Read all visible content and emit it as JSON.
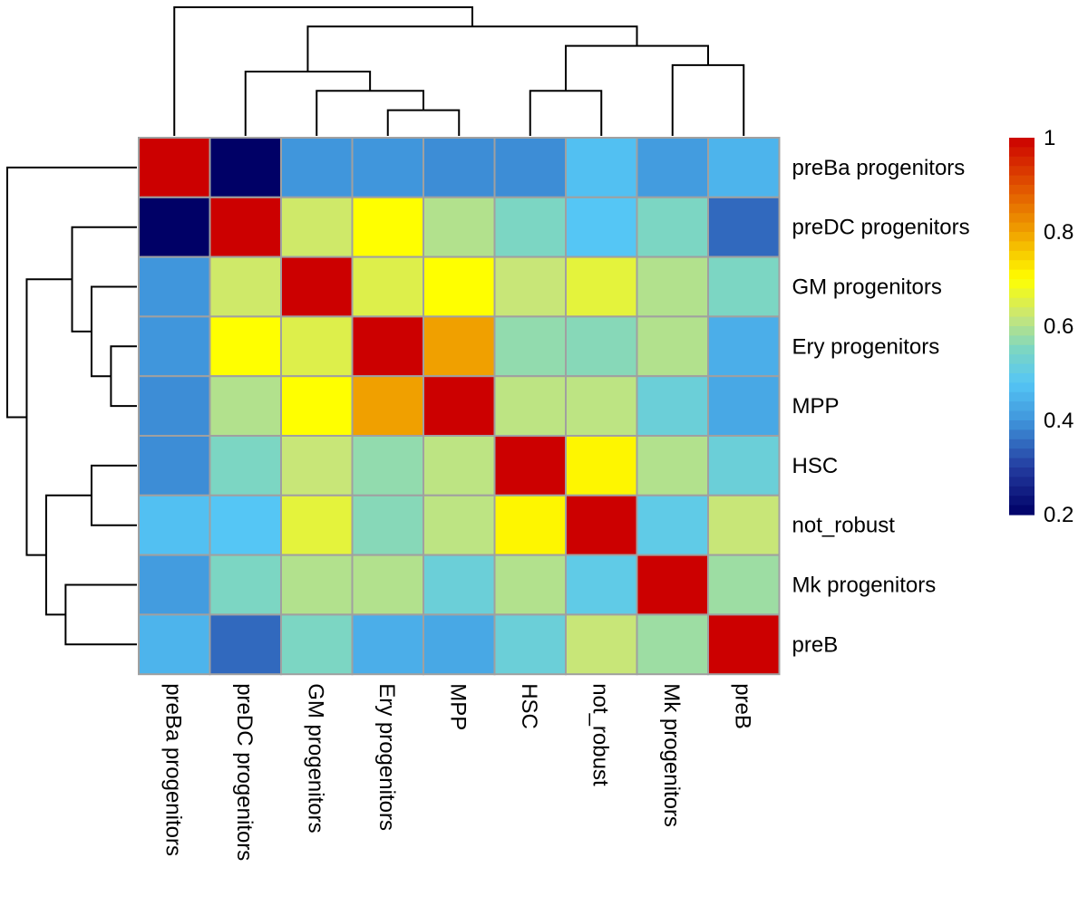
{
  "chart_data": {
    "type": "heatmap",
    "title": "",
    "rows": [
      "preBa progenitors",
      "preDC progenitors",
      "GM progenitors",
      "Ery progenitors",
      "MPP",
      "HSC",
      "not_robust",
      "Mk progenitors",
      "preB"
    ],
    "cols": [
      "preBa progenitors",
      "preDC progenitors",
      "GM progenitors",
      "Ery progenitors",
      "MPP",
      "HSC",
      "not_robust",
      "Mk progenitors",
      "preB"
    ],
    "values": [
      [
        1.0,
        0.2,
        0.4,
        0.4,
        0.39,
        0.39,
        0.47,
        0.41,
        0.45
      ],
      [
        0.2,
        1.0,
        0.63,
        0.7,
        0.6,
        0.55,
        0.48,
        0.55,
        0.35
      ],
      [
        0.4,
        0.63,
        1.0,
        0.65,
        0.7,
        0.62,
        0.66,
        0.6,
        0.55
      ],
      [
        0.4,
        0.7,
        0.65,
        1.0,
        0.8,
        0.57,
        0.56,
        0.6,
        0.44
      ],
      [
        0.39,
        0.6,
        0.7,
        0.8,
        1.0,
        0.61,
        0.61,
        0.52,
        0.43
      ],
      [
        0.39,
        0.55,
        0.62,
        0.57,
        0.61,
        1.0,
        0.71,
        0.6,
        0.52
      ],
      [
        0.47,
        0.48,
        0.66,
        0.56,
        0.61,
        0.71,
        1.0,
        0.5,
        0.62
      ],
      [
        0.41,
        0.55,
        0.6,
        0.6,
        0.52,
        0.6,
        0.5,
        1.0,
        0.58
      ],
      [
        0.45,
        0.35,
        0.55,
        0.44,
        0.43,
        0.52,
        0.62,
        0.58,
        1.0
      ]
    ],
    "color_scale": {
      "min": 0.2,
      "max": 1.0,
      "stops": [
        {
          "v": 0.2,
          "c": "#000066"
        },
        {
          "v": 0.3,
          "c": "#233ca0"
        },
        {
          "v": 0.4,
          "c": "#4096dc"
        },
        {
          "v": 0.48,
          "c": "#55c6f5"
        },
        {
          "v": 0.55,
          "c": "#7cd6c3"
        },
        {
          "v": 0.62,
          "c": "#c8e678"
        },
        {
          "v": 0.7,
          "c": "#ffff00"
        },
        {
          "v": 0.8,
          "c": "#f0a000"
        },
        {
          "v": 0.9,
          "c": "#e05000"
        },
        {
          "v": 1.0,
          "c": "#cc0000"
        }
      ],
      "ticks": [
        {
          "value": 0.2,
          "label": "0.2"
        },
        {
          "value": 0.4,
          "label": "0.4"
        },
        {
          "value": 0.6,
          "label": "0.6"
        },
        {
          "value": 0.8,
          "label": "0.8"
        },
        {
          "value": 1.0,
          "label": "1"
        }
      ]
    },
    "dendrogram": {
      "merges": [
        [
          3,
          4
        ],
        [
          2,
          9
        ],
        [
          1,
          10
        ],
        [
          5,
          6
        ],
        [
          7,
          8
        ],
        [
          12,
          13
        ],
        [
          11,
          14
        ],
        [
          0,
          15
        ]
      ],
      "heights": [
        0.2,
        0.35,
        0.5,
        0.35,
        0.55,
        0.7,
        0.85,
        1.0
      ]
    },
    "grid_color": "#a0a0a0"
  }
}
